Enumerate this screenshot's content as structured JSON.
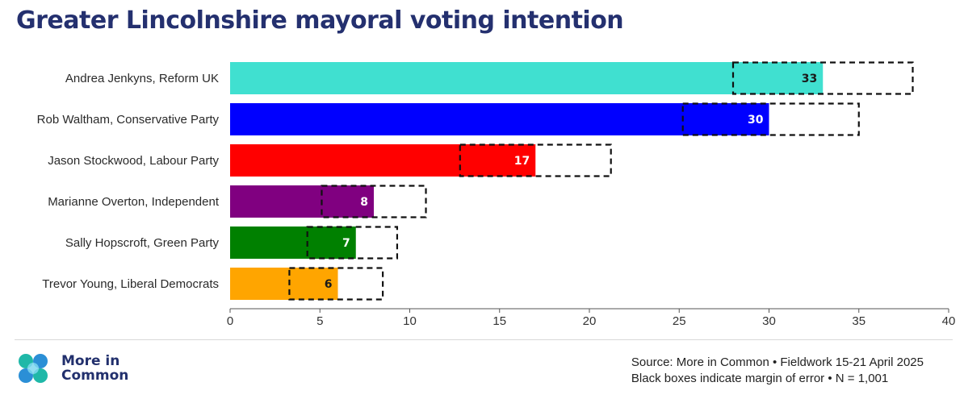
{
  "header": {
    "title": "Greater Lincolnshire mayoral voting intention"
  },
  "chart_data": {
    "type": "bar",
    "orientation": "horizontal",
    "categories": [
      "Andrea Jenkyns, Reform UK",
      "Rob Waltham, Conservative Party",
      "Jason Stockwood, Labour Party",
      "Marianne Overton, Independent",
      "Sally Hopscroft, Green Party",
      "Trevor Young, Liberal Democrats"
    ],
    "values": [
      33,
      30,
      17,
      8,
      7,
      6
    ],
    "data_labels": [
      "33",
      "30",
      "17",
      "8",
      "7",
      "6"
    ],
    "margin_of_error": [
      [
        28,
        38
      ],
      [
        25.2,
        35
      ],
      [
        12.8,
        21.2
      ],
      [
        5.1,
        10.9
      ],
      [
        4.3,
        9.3
      ],
      [
        3.3,
        8.5
      ]
    ],
    "colors": [
      "#40e0d0",
      "#0000ff",
      "#ff0000",
      "#800080",
      "#008000",
      "#ffa500"
    ],
    "label_colors": [
      "#1a1a1a",
      "#ffffff",
      "#ffffff",
      "#ffffff",
      "#ffffff",
      "#1a1a1a"
    ],
    "xlim": [
      0,
      40
    ],
    "xticks": [
      0,
      5,
      10,
      15,
      20,
      25,
      30,
      35,
      40
    ],
    "grid": false,
    "legend": "none"
  },
  "footer": {
    "logo_line1": "More in",
    "logo_line2": "Common",
    "source_line1": "Source: More in Common • Fieldwork 15-21 April 2025",
    "source_line2": "Black boxes indicate margin of error • N = 1,001"
  }
}
